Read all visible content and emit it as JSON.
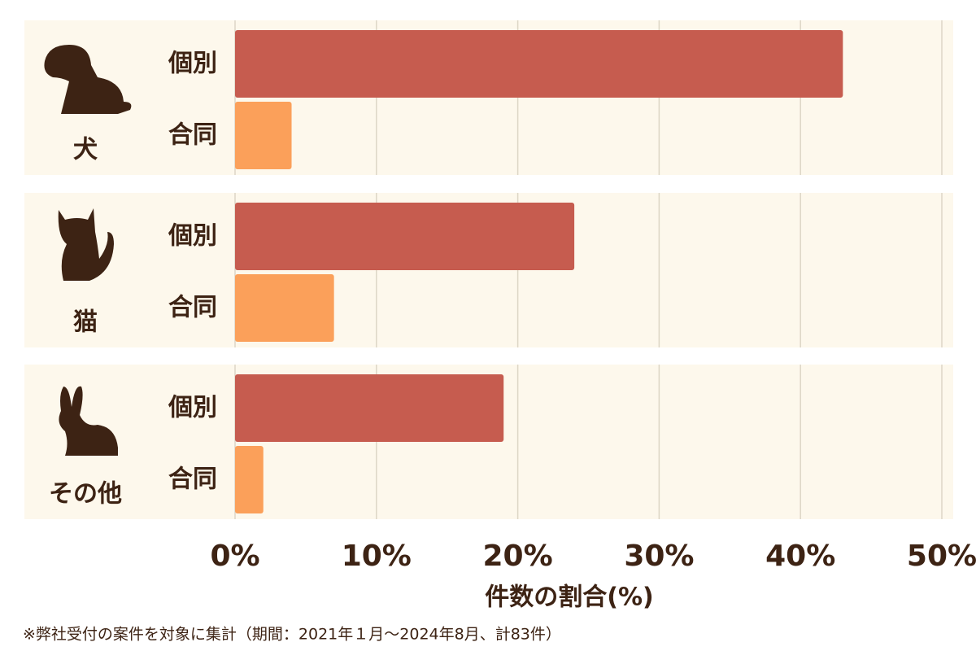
{
  "chart_data": {
    "type": "bar",
    "orientation": "horizontal",
    "categories": [
      "犬",
      "猫",
      "その他"
    ],
    "series": [
      {
        "name": "個別",
        "color": "#c65c4f",
        "values": [
          43,
          24,
          19
        ]
      },
      {
        "name": "合同",
        "color": "#fba05a",
        "values": [
          4,
          7,
          2
        ]
      }
    ],
    "xlim": [
      0,
      50
    ],
    "xticks": [
      {
        "value": 0,
        "label": "0%"
      },
      {
        "value": 10,
        "label": "10%"
      },
      {
        "value": 20,
        "label": "20%"
      },
      {
        "value": 30,
        "label": "30%"
      },
      {
        "value": 40,
        "label": "40%"
      },
      {
        "value": 50,
        "label": "50%"
      }
    ],
    "xlabel": "件数の割合(%)",
    "grid": true,
    "footnote": "※弊社受付の案件を対象に集計（期間：2021年１月〜2024年8月、計83件）"
  }
}
